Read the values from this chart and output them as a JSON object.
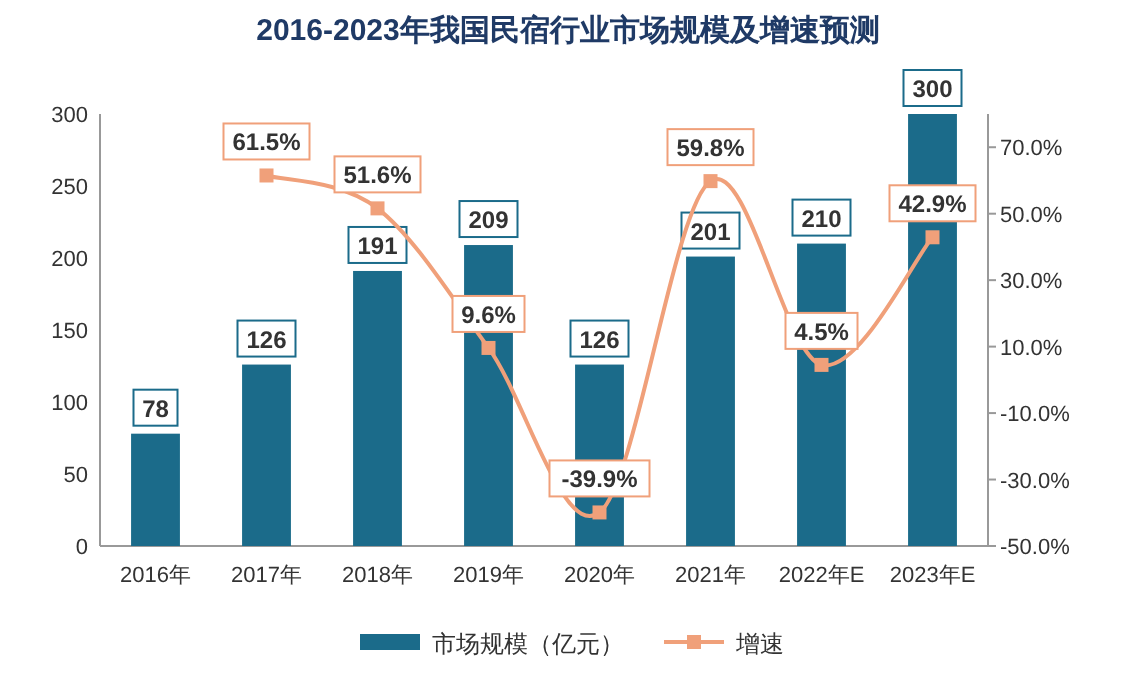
{
  "chart_data": {
    "type": "bar",
    "title": "2016-2023年我国民宿行业市场规模及增速预测",
    "categories": [
      "2016年",
      "2017年",
      "2018年",
      "2019年",
      "2020年",
      "2021年",
      "2022年E",
      "2023年E"
    ],
    "series": [
      {
        "name": "市场规模（亿元）",
        "color": "#1b6b8a",
        "values": [
          78,
          126,
          191,
          209,
          126,
          201,
          210,
          300
        ],
        "value_labels": [
          "78",
          "126",
          "191",
          "209",
          "126",
          "201",
          "210",
          "300"
        ]
      },
      {
        "name": "增速",
        "type": "line",
        "axis": "y2",
        "color": "#f0a07a",
        "marker": "square",
        "values": [
          null,
          61.5,
          51.6,
          9.6,
          -39.9,
          59.8,
          4.5,
          42.9
        ],
        "value_labels": [
          null,
          "61.5%",
          "51.6%",
          "9.6%",
          "-39.9%",
          "59.8%",
          "4.5%",
          "42.9%"
        ]
      }
    ],
    "ylim": [
      0,
      300
    ],
    "yticks": [
      0,
      50,
      100,
      150,
      200,
      250,
      300
    ],
    "y2lim": [
      -50,
      80
    ],
    "y2ticks": [
      {
        "value": -50,
        "label": "-50.0%"
      },
      {
        "value": -30,
        "label": "-30.0%"
      },
      {
        "value": -10,
        "label": "-10.0%"
      },
      {
        "value": 10,
        "label": "10.0%"
      },
      {
        "value": 30,
        "label": "30.0%"
      },
      {
        "value": 50,
        "label": "50.0%"
      },
      {
        "value": 70,
        "label": "70.0%"
      }
    ],
    "legend": "bottom",
    "grid": false
  }
}
